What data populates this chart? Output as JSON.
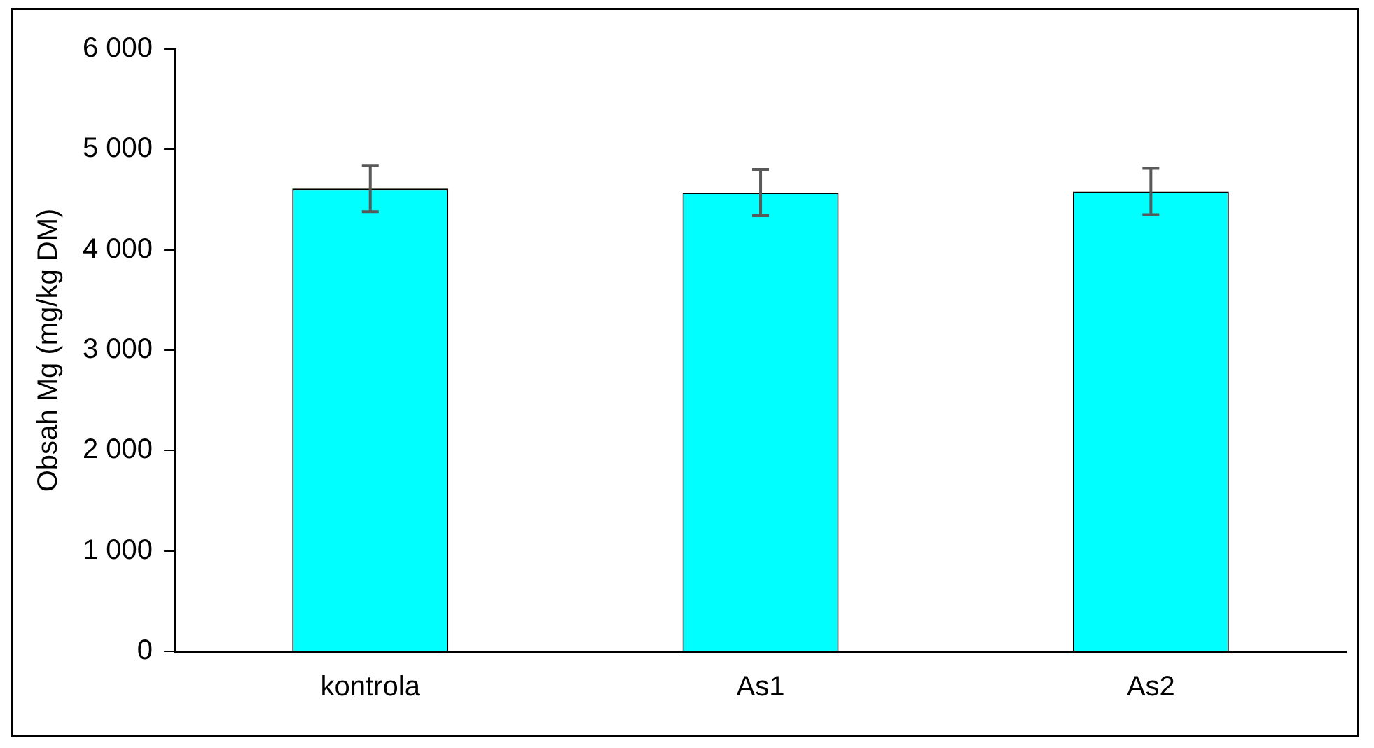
{
  "chart_data": {
    "type": "bar",
    "ylabel": "Obsah Mg (mg/kg DM)",
    "categories": [
      "kontrola",
      "As1",
      "As2"
    ],
    "values": [
      4610,
      4570,
      4580
    ],
    "errors": [
      230,
      230,
      230
    ],
    "color": "#00ffff",
    "ylim": [
      0,
      6000
    ],
    "yticks": [
      {
        "value": 0,
        "label": "0"
      },
      {
        "value": 1000,
        "label": "1 000"
      },
      {
        "value": 2000,
        "label": "2 000"
      },
      {
        "value": 3000,
        "label": "3 000"
      },
      {
        "value": 4000,
        "label": "4 000"
      },
      {
        "value": 5000,
        "label": "5 000"
      },
      {
        "value": 6000,
        "label": "6 000"
      }
    ],
    "grid": false,
    "legend": false
  }
}
